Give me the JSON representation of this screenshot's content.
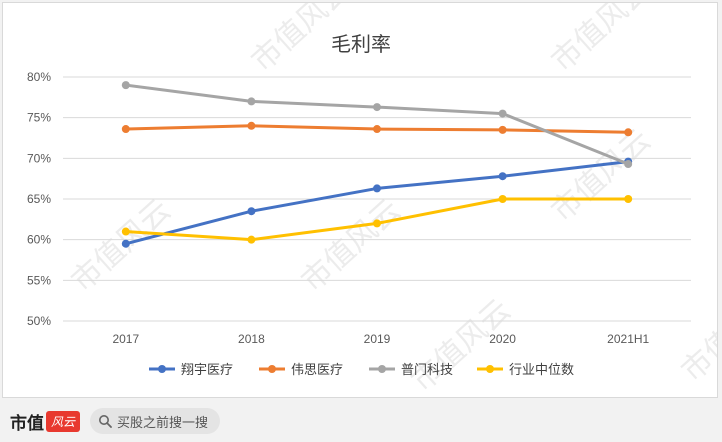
{
  "chart_data": {
    "type": "line",
    "title": "毛利率",
    "categories": [
      "2017",
      "2018",
      "2019",
      "2020",
      "2021H1"
    ],
    "y_ticks": [
      "80%",
      "75%",
      "70%",
      "65%",
      "60%",
      "55%",
      "50%"
    ],
    "ylim": [
      50,
      80
    ],
    "grid": true,
    "legend_position": "bottom",
    "series": [
      {
        "name": "翔宇医疗",
        "color": "#4472c4",
        "values": [
          59.5,
          63.5,
          66.3,
          67.8,
          69.6
        ]
      },
      {
        "name": "伟思医疗",
        "color": "#ed7d31",
        "values": [
          73.6,
          74.0,
          73.6,
          73.5,
          73.2
        ]
      },
      {
        "name": "普门科技",
        "color": "#a5a5a5",
        "values": [
          79.0,
          77.0,
          76.3,
          75.5,
          69.3
        ]
      },
      {
        "name": "行业中位数",
        "color": "#ffc000",
        "values": [
          61.0,
          60.0,
          62.0,
          65.0,
          65.0
        ]
      }
    ]
  },
  "watermark": "市值风云",
  "footer": {
    "brand": "市值",
    "brand_logo": "风云",
    "search_text": "买股之前搜一搜"
  }
}
